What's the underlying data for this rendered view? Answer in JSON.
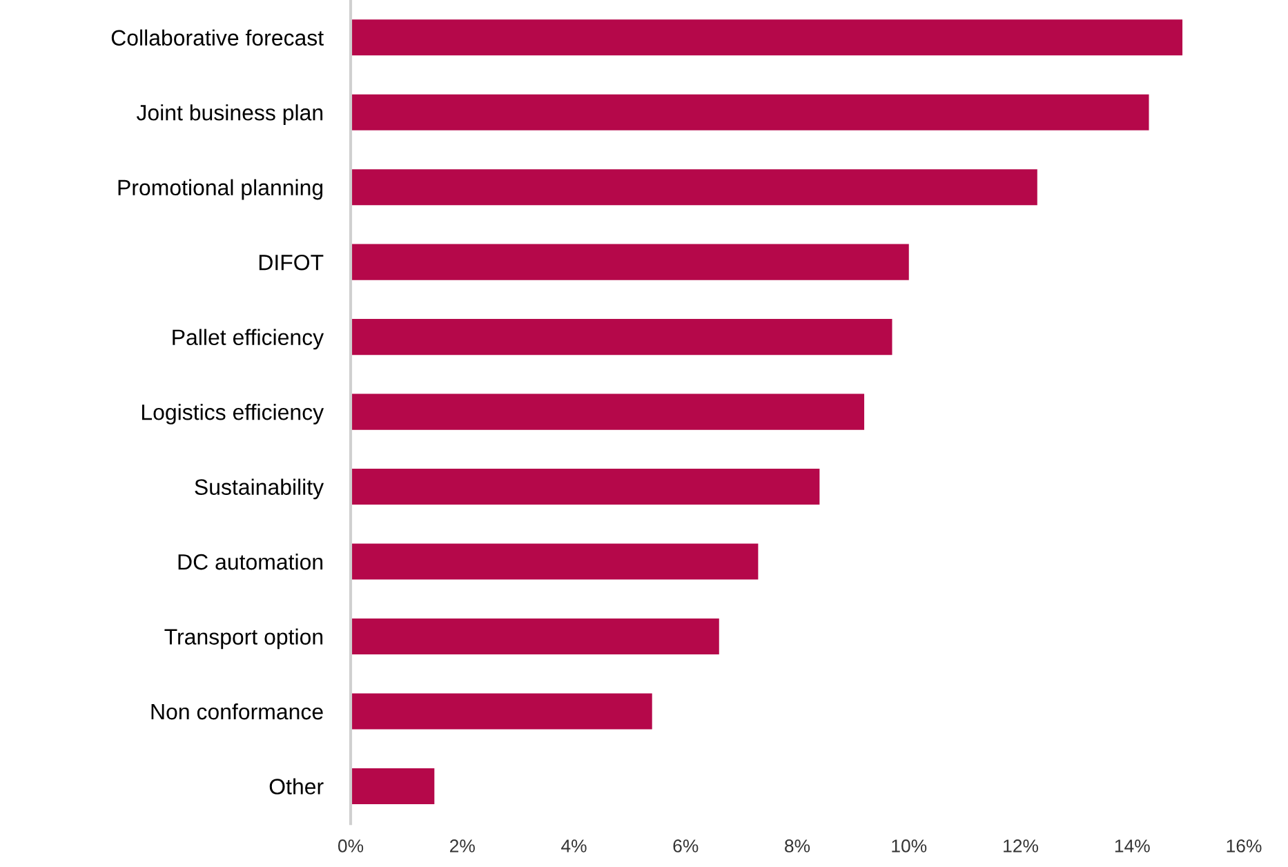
{
  "chart_data": {
    "type": "bar",
    "orientation": "horizontal",
    "categories": [
      "Collaborative forecast",
      "Joint business plan",
      "Promotional planning",
      "DIFOT",
      "Pallet efficiency",
      "Logistics efficiency",
      "Sustainability",
      "DC automation",
      "Transport option",
      "Non conformance",
      "Other"
    ],
    "values": [
      14.9,
      14.3,
      12.3,
      10.0,
      9.7,
      9.2,
      8.4,
      7.3,
      6.6,
      5.4,
      1.5
    ],
    "color": "#b5084a",
    "xlim": [
      0,
      16
    ],
    "xticks": [
      {
        "value": 0,
        "label": "0%"
      },
      {
        "value": 2,
        "label": "2%"
      },
      {
        "value": 4,
        "label": "4%"
      },
      {
        "value": 6,
        "label": "6%"
      },
      {
        "value": 8,
        "label": "8%"
      },
      {
        "value": 10,
        "label": "10%"
      },
      {
        "value": 12,
        "label": "12%"
      },
      {
        "value": 14,
        "label": "14%"
      },
      {
        "value": 16,
        "label": "16%"
      }
    ],
    "grid": false,
    "legend": false
  }
}
